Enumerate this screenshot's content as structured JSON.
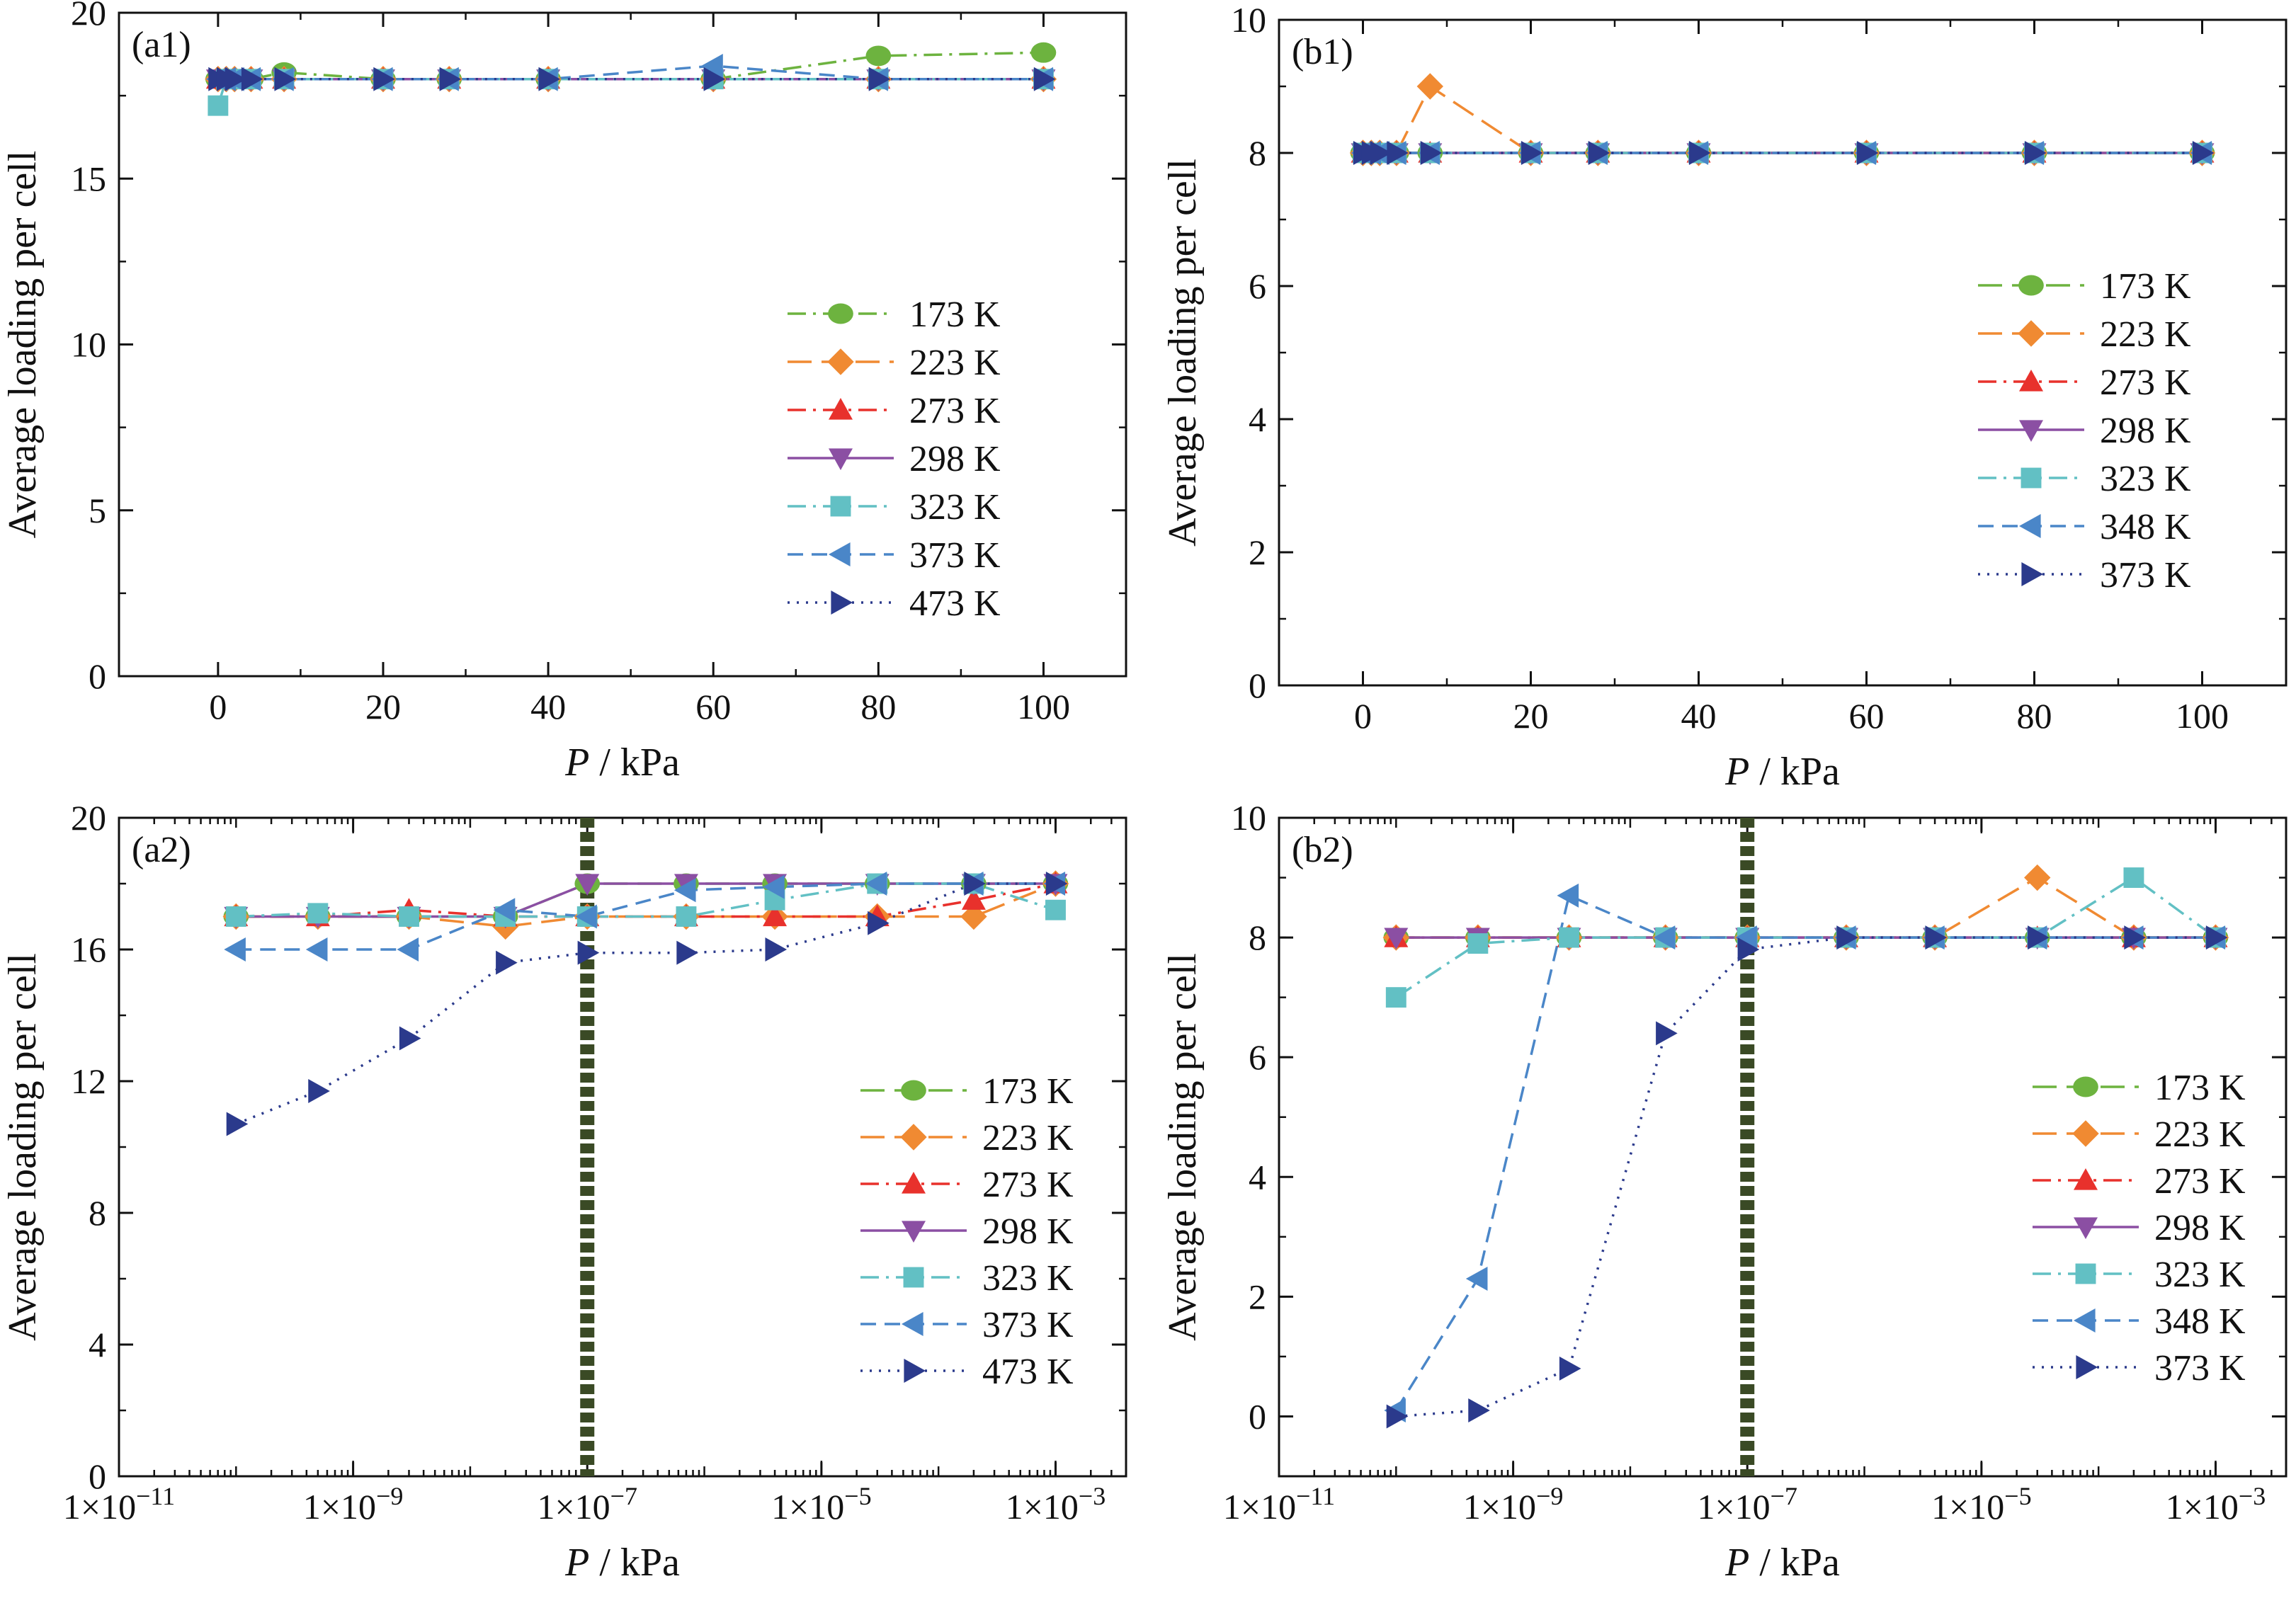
{
  "figure": {
    "ylabel": "Average loading per cell",
    "xlabel_italic": "P",
    "xlabel_unit": " / kPa"
  },
  "colors": {
    "173": "#6db33f",
    "223": "#f08a32",
    "273": "#e8312c",
    "298": "#8b4fa3",
    "323": "#62c0c4",
    "348": "#4a86c8",
    "373_373b": "#4a86c8",
    "473": "#2b3a8c",
    "373b_b": "#2b3a8c",
    "divider": "#3a4a25"
  },
  "chart_data": [
    {
      "id": "a1",
      "panel_label": "(a1)",
      "type": "line",
      "xscale": "linear",
      "xlim": [
        -12,
        110
      ],
      "ylim": [
        0,
        20
      ],
      "xticks": [
        0,
        20,
        40,
        60,
        80,
        100
      ],
      "xtick_labels": [
        "0",
        "20",
        "40",
        "60",
        "80",
        "100"
      ],
      "yticks": [
        0,
        5,
        10,
        15,
        20
      ],
      "ytick_labels": [
        "0",
        "5",
        "10",
        "15",
        "20"
      ],
      "xlabel": "P / kPa",
      "ylabel": "Average loading per cell",
      "legend_position": "right",
      "series": [
        {
          "name": "173 K",
          "color": "#6db33f",
          "marker": "circle",
          "dash": "dashdot",
          "x": [
            0,
            1,
            2,
            4,
            8,
            20,
            28,
            40,
            60,
            80,
            100
          ],
          "y": [
            18,
            18,
            18,
            18,
            18.2,
            18,
            18,
            18,
            18,
            18.7,
            18.8
          ]
        },
        {
          "name": "223 K",
          "color": "#f08a32",
          "marker": "diamond",
          "dash": "longdash",
          "x": [
            0,
            1,
            2,
            4,
            8,
            20,
            28,
            40,
            60,
            80,
            100
          ],
          "y": [
            18,
            18,
            18,
            18,
            18,
            18,
            18,
            18,
            18,
            18,
            18
          ]
        },
        {
          "name": "273 K",
          "color": "#e8312c",
          "marker": "triangle-up",
          "dash": "dashdot",
          "x": [
            0,
            1,
            2,
            4,
            8,
            20,
            28,
            40,
            60,
            80,
            100
          ],
          "y": [
            18,
            18,
            18,
            18,
            18,
            18,
            18,
            18,
            18,
            18,
            18
          ]
        },
        {
          "name": "298 K",
          "color": "#8b4fa3",
          "marker": "triangle-down",
          "dash": "solid",
          "x": [
            0,
            1,
            2,
            4,
            8,
            20,
            28,
            40,
            60,
            80,
            100
          ],
          "y": [
            18,
            18,
            18,
            18,
            18,
            18,
            18,
            18,
            18,
            18,
            18
          ]
        },
        {
          "name": "323 K",
          "color": "#62c0c4",
          "marker": "square",
          "dash": "dashdot",
          "x": [
            0,
            1,
            2,
            4,
            8,
            20,
            28,
            40,
            60,
            80,
            100
          ],
          "y": [
            17.2,
            18,
            18,
            18,
            18,
            18,
            18,
            18,
            18,
            18,
            18
          ]
        },
        {
          "name": "373 K",
          "color": "#4a86c8",
          "marker": "triangle-left",
          "dash": "dashed",
          "x": [
            0,
            1,
            2,
            4,
            8,
            20,
            28,
            40,
            60,
            80,
            100
          ],
          "y": [
            18,
            18,
            18,
            18,
            18,
            18,
            18,
            18,
            18.4,
            18,
            18
          ]
        },
        {
          "name": "473 K",
          "color": "#2b3a8c",
          "marker": "triangle-right",
          "dash": "dotted",
          "x": [
            0,
            1,
            2,
            4,
            8,
            20,
            28,
            40,
            60,
            80,
            100
          ],
          "y": [
            18,
            18,
            18,
            18,
            18,
            18,
            18,
            18,
            18,
            18,
            18
          ]
        }
      ]
    },
    {
      "id": "b1",
      "panel_label": "(b1)",
      "type": "line",
      "xscale": "linear",
      "xlim": [
        -10,
        110
      ],
      "ylim": [
        0,
        10
      ],
      "xticks": [
        0,
        20,
        40,
        60,
        80,
        100
      ],
      "xtick_labels": [
        "0",
        "20",
        "40",
        "60",
        "80",
        "100"
      ],
      "yticks": [
        0,
        2,
        4,
        6,
        8,
        10
      ],
      "ytick_labels": [
        "0",
        "2",
        "4",
        "6",
        "8",
        "10"
      ],
      "xlabel": "P / kPa",
      "ylabel": "Average loading per cell",
      "legend_position": "right",
      "series": [
        {
          "name": "173 K",
          "color": "#6db33f",
          "marker": "circle",
          "dash": "longdash",
          "x": [
            0,
            1,
            2,
            4,
            8,
            20,
            28,
            40,
            60,
            80,
            100
          ],
          "y": [
            8,
            8,
            8,
            8,
            8,
            8,
            8,
            8,
            8,
            8,
            8
          ]
        },
        {
          "name": "223 K",
          "color": "#f08a32",
          "marker": "diamond",
          "dash": "longdash",
          "x": [
            0,
            1,
            2,
            4,
            8,
            20,
            28,
            40,
            60,
            80,
            100
          ],
          "y": [
            8,
            8,
            8,
            8,
            9,
            8,
            8,
            8,
            8,
            8,
            8
          ]
        },
        {
          "name": "273 K",
          "color": "#e8312c",
          "marker": "triangle-up",
          "dash": "dashdot",
          "x": [
            0,
            1,
            2,
            4,
            8,
            20,
            28,
            40,
            60,
            80,
            100
          ],
          "y": [
            8,
            8,
            8,
            8,
            8,
            8,
            8,
            8,
            8,
            8,
            8
          ]
        },
        {
          "name": "298 K",
          "color": "#8b4fa3",
          "marker": "triangle-down",
          "dash": "solid",
          "x": [
            0,
            1,
            2,
            4,
            8,
            20,
            28,
            40,
            60,
            80,
            100
          ],
          "y": [
            8,
            8,
            8,
            8,
            8,
            8,
            8,
            8,
            8,
            8,
            8
          ]
        },
        {
          "name": "323 K",
          "color": "#62c0c4",
          "marker": "square",
          "dash": "dashdot",
          "x": [
            0,
            1,
            2,
            4,
            8,
            20,
            28,
            40,
            60,
            80,
            100
          ],
          "y": [
            8,
            8,
            8,
            8,
            8,
            8,
            8,
            8,
            8,
            8,
            8
          ]
        },
        {
          "name": "348 K",
          "color": "#4a86c8",
          "marker": "triangle-left",
          "dash": "dashed",
          "x": [
            0,
            1,
            2,
            4,
            8,
            20,
            28,
            40,
            60,
            80,
            100
          ],
          "y": [
            8,
            8,
            8,
            8,
            8,
            8,
            8,
            8,
            8,
            8,
            8
          ]
        },
        {
          "name": "373 K",
          "color": "#2b3a8c",
          "marker": "triangle-right",
          "dash": "dotted",
          "x": [
            0,
            1,
            2,
            4,
            8,
            20,
            28,
            40,
            60,
            80,
            100
          ],
          "y": [
            8,
            8,
            8,
            8,
            8,
            8,
            8,
            8,
            8,
            8,
            8
          ]
        }
      ]
    },
    {
      "id": "a2",
      "panel_label": "(a2)",
      "type": "line",
      "xscale": "log",
      "xlim": [
        1e-11,
        0.004
      ],
      "ylim": [
        0,
        20
      ],
      "xticks": [
        1e-11,
        1e-09,
        1e-07,
        1e-05,
        0.001
      ],
      "xtick_labels": [
        "1×10⁻¹¹",
        "1×10⁻⁹",
        "1×10⁻⁷",
        "1×10⁻⁵",
        "1×10⁻³"
      ],
      "yticks": [
        0,
        4,
        8,
        12,
        16,
        20
      ],
      "ytick_labels": [
        "0",
        "4",
        "8",
        "12",
        "16",
        "20"
      ],
      "xlabel": "P / kPa",
      "ylabel": "Average loading per cell",
      "legend_position": "right",
      "vline_x": 1e-07,
      "series": [
        {
          "name": "173 K",
          "color": "#6db33f",
          "marker": "circle",
          "dash": "longdash",
          "x": [
            1e-10,
            5e-10,
            3e-09,
            2e-08,
            1e-07,
            7e-07,
            4e-06,
            3e-05,
            0.0002,
            0.001
          ],
          "y": [
            17,
            17,
            17,
            17,
            18,
            18,
            18,
            18,
            18,
            18
          ]
        },
        {
          "name": "223 K",
          "color": "#f08a32",
          "marker": "diamond",
          "dash": "longdash",
          "x": [
            1e-10,
            5e-10,
            3e-09,
            2e-08,
            1e-07,
            7e-07,
            4e-06,
            3e-05,
            0.0002,
            0.001
          ],
          "y": [
            17,
            17,
            17,
            16.7,
            17,
            17,
            17,
            17,
            17,
            18
          ]
        },
        {
          "name": "273 K",
          "color": "#e8312c",
          "marker": "triangle-up",
          "dash": "dashdot",
          "x": [
            1e-10,
            5e-10,
            3e-09,
            2e-08,
            1e-07,
            7e-07,
            4e-06,
            3e-05,
            0.0002,
            0.001
          ],
          "y": [
            17,
            17,
            17.2,
            17,
            17,
            17,
            17,
            17,
            17.5,
            18
          ]
        },
        {
          "name": "298 K",
          "color": "#8b4fa3",
          "marker": "triangle-down",
          "dash": "solid",
          "x": [
            1e-10,
            5e-10,
            3e-09,
            2e-08,
            1e-07,
            7e-07,
            4e-06,
            3e-05,
            0.0002,
            0.001
          ],
          "y": [
            17,
            17,
            17,
            17,
            18,
            18,
            18,
            18,
            18,
            18
          ]
        },
        {
          "name": "323 K",
          "color": "#62c0c4",
          "marker": "square",
          "dash": "dashdot",
          "x": [
            1e-10,
            5e-10,
            3e-09,
            2e-08,
            1e-07,
            7e-07,
            4e-06,
            3e-05,
            0.0002,
            0.001
          ],
          "y": [
            17,
            17.1,
            17,
            17,
            17,
            17,
            17.5,
            18,
            18,
            17.2
          ]
        },
        {
          "name": "373 K",
          "color": "#4a86c8",
          "marker": "triangle-left",
          "dash": "dashed",
          "x": [
            1e-10,
            5e-10,
            3e-09,
            2e-08,
            1e-07,
            7e-07,
            4e-06,
            3e-05,
            0.0002,
            0.001
          ],
          "y": [
            16,
            16,
            16,
            17.2,
            17,
            17.8,
            17.9,
            18,
            18,
            18
          ]
        },
        {
          "name": "473 K",
          "color": "#2b3a8c",
          "marker": "triangle-right",
          "dash": "dotted",
          "x": [
            1e-10,
            5e-10,
            3e-09,
            2e-08,
            1e-07,
            7e-07,
            4e-06,
            3e-05,
            0.0002,
            0.001
          ],
          "y": [
            10.7,
            11.7,
            13.3,
            15.6,
            15.9,
            15.9,
            16,
            16.8,
            18,
            18
          ]
        }
      ]
    },
    {
      "id": "b2",
      "panel_label": "(b2)",
      "type": "line",
      "xscale": "log",
      "xlim": [
        1e-11,
        0.004
      ],
      "ylim": [
        -1,
        10
      ],
      "xticks": [
        1e-11,
        1e-09,
        1e-07,
        1e-05,
        0.001
      ],
      "xtick_labels": [
        "1×10⁻¹¹",
        "1×10⁻⁹",
        "1×10⁻⁷",
        "1×10⁻⁵",
        "1×10⁻³"
      ],
      "yticks": [
        0,
        2,
        4,
        6,
        8,
        10
      ],
      "ytick_labels": [
        "0",
        "2",
        "4",
        "6",
        "8",
        "10"
      ],
      "xlabel": "P / kPa",
      "ylabel": "Average loading per cell",
      "legend_position": "right",
      "vline_x": 1e-07,
      "series": [
        {
          "name": "173 K",
          "color": "#6db33f",
          "marker": "circle",
          "dash": "longdash",
          "x": [
            1e-10,
            5e-10,
            3e-09,
            2e-08,
            1e-07,
            7e-07,
            4e-06,
            3e-05,
            0.0002,
            0.001
          ],
          "y": [
            8,
            8,
            8,
            8,
            8,
            8,
            8,
            8,
            8,
            8
          ]
        },
        {
          "name": "223 K",
          "color": "#f08a32",
          "marker": "diamond",
          "dash": "longdash",
          "x": [
            1e-10,
            5e-10,
            3e-09,
            2e-08,
            1e-07,
            7e-07,
            4e-06,
            3e-05,
            0.0002,
            0.001
          ],
          "y": [
            8,
            8,
            8,
            8,
            8,
            8,
            8,
            9,
            8,
            8
          ]
        },
        {
          "name": "273 K",
          "color": "#e8312c",
          "marker": "triangle-up",
          "dash": "dashdot",
          "x": [
            1e-10,
            5e-10,
            3e-09,
            2e-08,
            1e-07,
            7e-07,
            4e-06,
            3e-05,
            0.0002,
            0.001
          ],
          "y": [
            8,
            8,
            8,
            8,
            8,
            8,
            8,
            8,
            8,
            8
          ]
        },
        {
          "name": "298 K",
          "color": "#8b4fa3",
          "marker": "triangle-down",
          "dash": "solid",
          "x": [
            1e-10,
            5e-10,
            3e-09,
            2e-08,
            1e-07,
            7e-07,
            4e-06,
            3e-05,
            0.0002,
            0.001
          ],
          "y": [
            8,
            8,
            8,
            8,
            8,
            8,
            8,
            8,
            8,
            8
          ]
        },
        {
          "name": "323 K",
          "color": "#62c0c4",
          "marker": "square",
          "dash": "dashdot",
          "x": [
            1e-10,
            5e-10,
            3e-09,
            2e-08,
            1e-07,
            7e-07,
            4e-06,
            3e-05,
            0.0002,
            0.001
          ],
          "y": [
            7,
            7.9,
            8,
            8,
            8,
            8,
            8,
            8,
            9,
            8
          ]
        },
        {
          "name": "348 K",
          "color": "#4a86c8",
          "marker": "triangle-left",
          "dash": "dashed",
          "x": [
            1e-10,
            5e-10,
            3e-09,
            2e-08,
            1e-07,
            7e-07,
            4e-06,
            3e-05,
            0.0002,
            0.001
          ],
          "y": [
            0.1,
            2.3,
            8.7,
            8,
            8,
            8,
            8,
            8,
            8,
            8
          ]
        },
        {
          "name": "373 K",
          "color": "#2b3a8c",
          "marker": "triangle-right",
          "dash": "dotted",
          "x": [
            1e-10,
            5e-10,
            3e-09,
            2e-08,
            1e-07,
            7e-07,
            4e-06,
            3e-05,
            0.0002,
            0.001
          ],
          "y": [
            0,
            0.1,
            0.8,
            6.4,
            7.8,
            8,
            8,
            8,
            8,
            8
          ]
        }
      ]
    }
  ]
}
